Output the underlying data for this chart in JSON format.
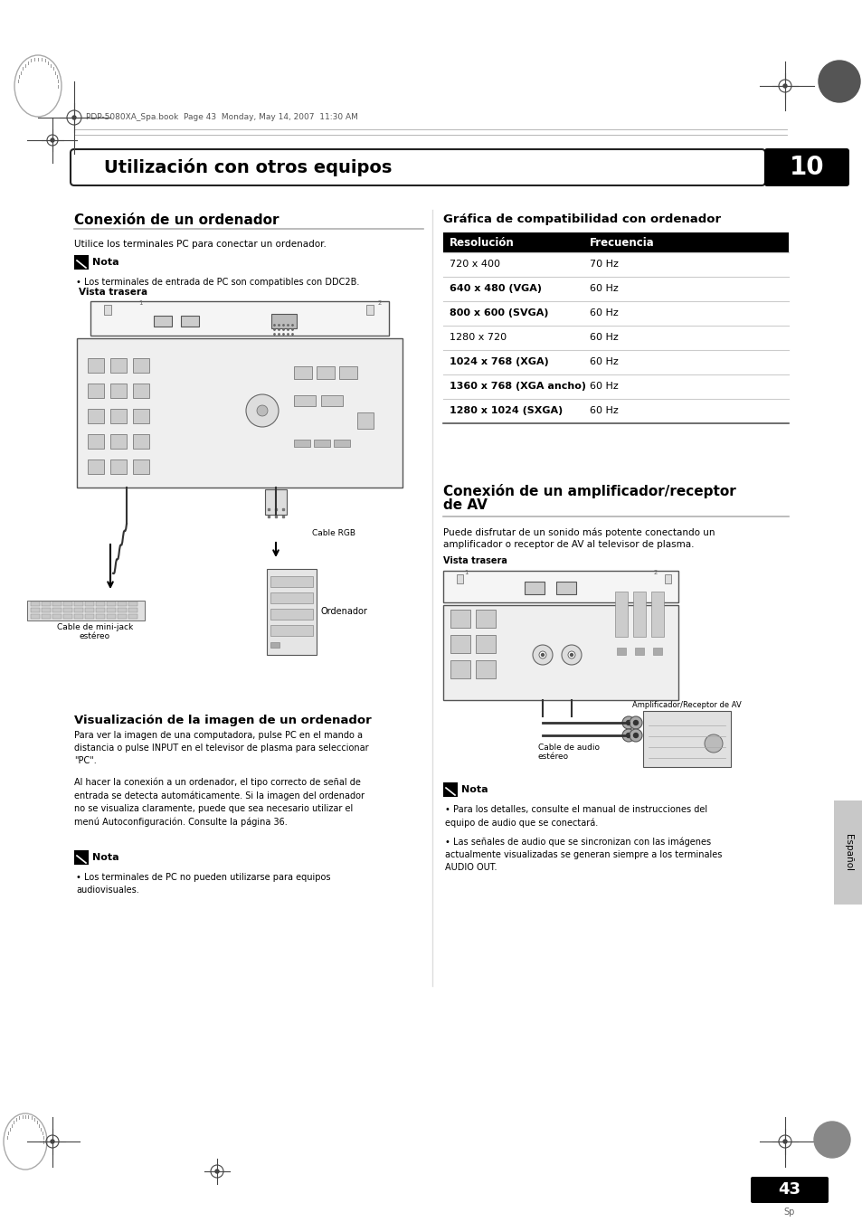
{
  "bg_color": "#ffffff",
  "page_header_text": "PDP-5080XA_Spa.book  Page 43  Monday, May 14, 2007  11:30 AM",
  "chapter_title": "Utilización con otros equipos",
  "chapter_number": "10",
  "section1_title": "Conexión de un ordenador",
  "section1_desc": "Utilice los terminales PC para conectar un ordenador.",
  "section1_note_title": "Nota",
  "section1_note1": "• Los terminales de entrada de PC son compatibles con DDC2B.",
  "vista_trasera1": "Vista trasera",
  "cable_minijack": "Cable de mini-jack\nestéreo",
  "cable_rgb": "Cable RGB",
  "ordenador": "Ordenador",
  "section2_title": "Visualización de la imagen de un ordenador",
  "section2_p1": "Para ver la imagen de una computadora, pulse PC en el mando a\ndistancia o pulse INPUT en el televisor de plasma para seleccionar\n\"PC\".",
  "section2_p2": "Al hacer la conexión a un ordenador, el tipo correcto de señal de\nentrada se detecta automáticamente. Si la imagen del ordenador\nno se visualiza claramente, puede que sea necesario utilizar el\nmenú Autoconfiguración. Consulte la página 36.",
  "section2_note_title": "Nota",
  "section2_note1": "• Los terminales de PC no pueden utilizarse para equipos\naudiovisuales.",
  "table_title": "Gráfica de compatibilidad con ordenador",
  "table_header": [
    "Resolución",
    "Frecuencia"
  ],
  "table_rows": [
    [
      "720 x 400",
      "70 Hz",
      false
    ],
    [
      "640 x 480 (VGA)",
      "60 Hz",
      true
    ],
    [
      "800 x 600 (SVGA)",
      "60 Hz",
      true
    ],
    [
      "1280 x 720",
      "60 Hz",
      false
    ],
    [
      "1024 x 768 (XGA)",
      "60 Hz",
      true
    ],
    [
      "1360 x 768 (XGA ancho)",
      "60 Hz",
      true
    ],
    [
      "1280 x 1024 (SXGA)",
      "60 Hz",
      true
    ]
  ],
  "section3_title_line1": "Conexión de un amplificador/receptor",
  "section3_title_line2": "de AV",
  "section3_desc": "Puede disfrutar de un sonido más potente conectando un\namplificador o receptor de AV al televisor de plasma.",
  "vista_trasera2": "Vista trasera",
  "cable_audio": "Cable de audio\nestéreo",
  "amplificador": "Amplificador/Receptor de AV",
  "section3_note_title": "Nota",
  "section3_note1": "• Para los detalles, consulte el manual de instrucciones del\nequipo de audio que se conectará.",
  "section3_note2": "• Las señales de audio que se sincronizan con las imágenes\nactualmente visualizadas se generan siempre a los terminales\nAUDIO OUT.",
  "espanol_label": "Español",
  "page_number": "43",
  "page_sp": "Sp"
}
